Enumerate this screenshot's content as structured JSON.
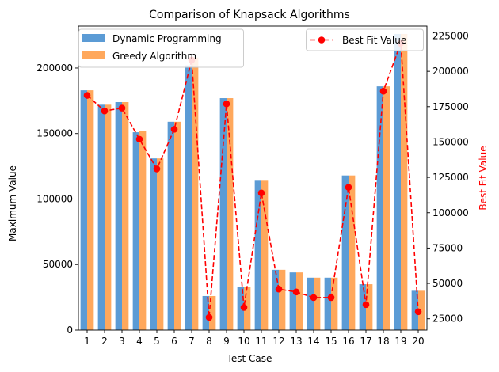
{
  "chart_data": {
    "type": "bar",
    "title": "Comparison of Knapsack Algorithms",
    "xlabel": "Test Case",
    "ylabel": "Maximum Value",
    "y2label": "Best Fit Value",
    "categories": [
      "1",
      "2",
      "3",
      "4",
      "5",
      "6",
      "7",
      "8",
      "9",
      "10",
      "11",
      "12",
      "13",
      "14",
      "15",
      "16",
      "17",
      "18",
      "19",
      "20"
    ],
    "series": [
      {
        "name": "Dynamic Programming",
        "type": "bar",
        "axis": "left",
        "color": "#5b9bd5",
        "values": [
          183000,
          172000,
          174000,
          151000,
          131000,
          159000,
          202000,
          26000,
          177000,
          33000,
          114000,
          46000,
          44000,
          40000,
          40000,
          118000,
          35000,
          186000,
          226000,
          30000
        ]
      },
      {
        "name": "Greedy Algorithm",
        "type": "bar",
        "axis": "left",
        "color": "#ffa85c",
        "values": [
          183000,
          172000,
          174000,
          152000,
          131000,
          159000,
          208000,
          26000,
          177000,
          33000,
          114000,
          46000,
          44000,
          40000,
          40000,
          118000,
          35000,
          186000,
          226000,
          30000
        ]
      },
      {
        "name": "Best Fit Value",
        "type": "line",
        "axis": "right",
        "color": "#ff0000",
        "values": [
          183000,
          172000,
          174000,
          152000,
          131000,
          159000,
          208000,
          26000,
          177000,
          33000,
          114000,
          46000,
          44000,
          40000,
          40000,
          118000,
          35000,
          186000,
          220000,
          30000
        ]
      }
    ],
    "ylim": [
      0,
      232000
    ],
    "y2lim": [
      17000,
      232000
    ],
    "yticks": [
      0,
      50000,
      100000,
      150000,
      200000
    ],
    "y2ticks": [
      25000,
      50000,
      75000,
      100000,
      125000,
      150000,
      175000,
      200000,
      225000
    ],
    "legend_left": "top-left",
    "legend_right": "top-right"
  }
}
